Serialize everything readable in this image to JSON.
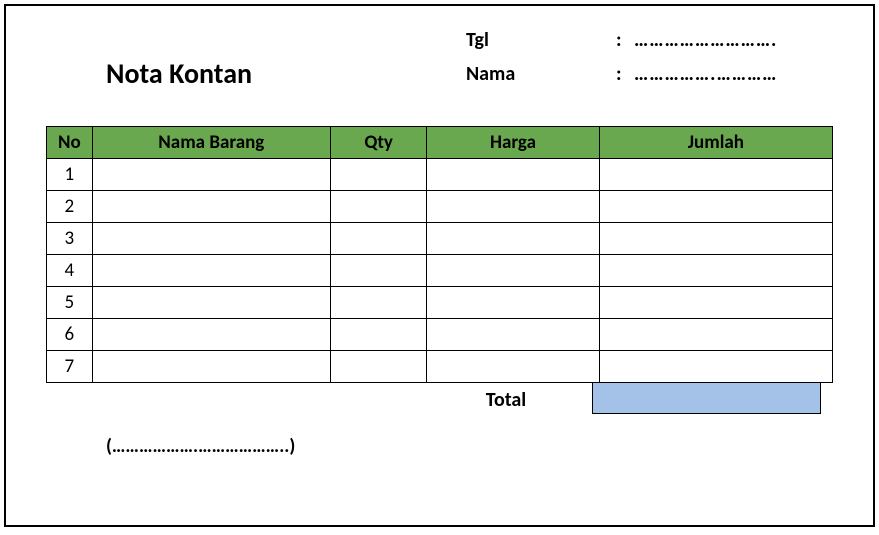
{
  "title": "Nota Kontan",
  "meta": {
    "date_label": "Tgl",
    "date_dots": "……………………….",
    "name_label": "Nama",
    "name_dots": "…………….…………"
  },
  "table": {
    "header_bg": "#6aa84f",
    "columns": {
      "no": "No",
      "item": "Nama Barang",
      "qty": "Qty",
      "price": "Harga",
      "amount": "Jumlah"
    },
    "rows": [
      {
        "no": "1",
        "item": "",
        "qty": "",
        "price": "",
        "amount": ""
      },
      {
        "no": "2",
        "item": "",
        "qty": "",
        "price": "",
        "amount": ""
      },
      {
        "no": "3",
        "item": "",
        "qty": "",
        "price": "",
        "amount": ""
      },
      {
        "no": "4",
        "item": "",
        "qty": "",
        "price": "",
        "amount": ""
      },
      {
        "no": "5",
        "item": "",
        "qty": "",
        "price": "",
        "amount": ""
      },
      {
        "no": "6",
        "item": "",
        "qty": "",
        "price": "",
        "amount": ""
      },
      {
        "no": "7",
        "item": "",
        "qty": "",
        "price": "",
        "amount": ""
      }
    ]
  },
  "total": {
    "label": "Total",
    "box_bg": "#a4c2e8"
  },
  "signature": "(……………….………………..)"
}
